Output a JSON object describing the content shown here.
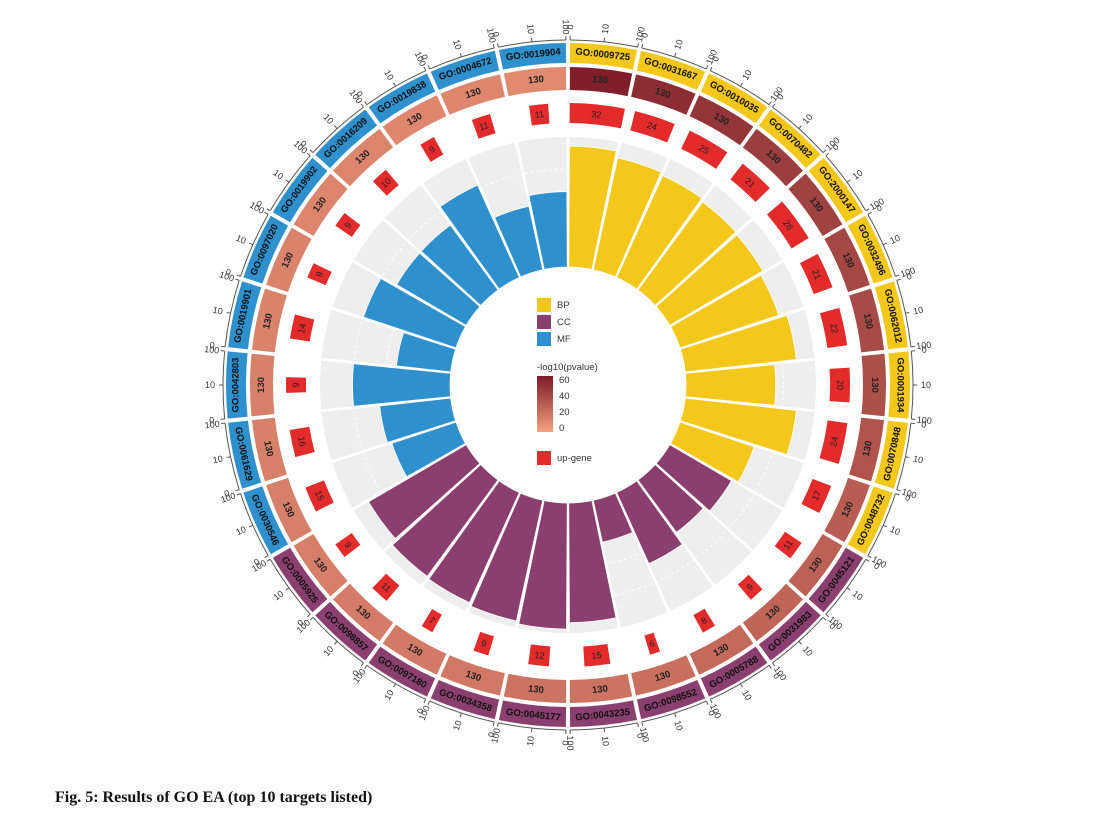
{
  "figure": {
    "caption": "Fig. 5: Results of GO EA (top 10 targets listed)"
  },
  "colors": {
    "BP": "#f4c81a",
    "CC": "#8b3f6e",
    "MF": "#2e90cc",
    "up_gene": "#e32b2b",
    "pvalue_low": "#f4a07e",
    "pvalue_high": "#7c1a28",
    "track_bg": "#eeeeee"
  },
  "chart_data": {
    "type": "circular-bar",
    "title": "",
    "legend": {
      "categories": [
        "BP",
        "CC",
        "MF"
      ],
      "gradient_title": "-log10(pvalue)",
      "gradient_ticks": [
        "60",
        "40",
        "20",
        "0"
      ],
      "gradient_range": [
        0,
        60
      ],
      "up_gene_label": "up-gene"
    },
    "outer_scale": {
      "ticks": [
        "0",
        "10",
        "100"
      ],
      "max": 100
    },
    "rich_factor_max": 1,
    "terms": [
      {
        "id": "GO:0009725",
        "category": "BP",
        "total": 130,
        "up_gene": 32,
        "neg_log10_p": 58,
        "rich_factor": 0.93
      },
      {
        "id": "GO:0031667",
        "category": "BP",
        "total": 130,
        "up_gene": 24,
        "neg_log10_p": 52,
        "rich_factor": 0.88
      },
      {
        "id": "GO:0010035",
        "category": "BP",
        "total": 130,
        "up_gene": 25,
        "neg_log10_p": 48,
        "rich_factor": 0.86
      },
      {
        "id": "GO:0070482",
        "category": "BP",
        "total": 130,
        "up_gene": 21,
        "neg_log10_p": 44,
        "rich_factor": 0.84
      },
      {
        "id": "GO:2000147",
        "category": "BP",
        "total": 130,
        "up_gene": 26,
        "neg_log10_p": 42,
        "rich_factor": 0.83
      },
      {
        "id": "GO:0032496",
        "category": "BP",
        "total": 130,
        "up_gene": 21,
        "neg_log10_p": 40,
        "rich_factor": 0.8
      },
      {
        "id": "GO:0062012",
        "category": "BP",
        "total": 130,
        "up_gene": 22,
        "neg_log10_p": 38,
        "rich_factor": 0.86
      },
      {
        "id": "GO:0001934",
        "category": "BP",
        "total": 130,
        "up_gene": 20,
        "neg_log10_p": 36,
        "rich_factor": 0.69
      },
      {
        "id": "GO:0070848",
        "category": "BP",
        "total": 130,
        "up_gene": 24,
        "neg_log10_p": 34,
        "rich_factor": 0.86
      },
      {
        "id": "GO:0048732",
        "category": "BP",
        "total": 130,
        "up_gene": 17,
        "neg_log10_p": 30,
        "rich_factor": 0.6
      },
      {
        "id": "GO:0045121",
        "category": "CC",
        "total": 130,
        "up_gene": 11,
        "neg_log10_p": 28,
        "rich_factor": 0.55
      },
      {
        "id": "GO:0031983",
        "category": "CC",
        "total": 130,
        "up_gene": 9,
        "neg_log10_p": 26,
        "rich_factor": 0.5
      },
      {
        "id": "GO:0005788",
        "category": "CC",
        "total": 130,
        "up_gene": 8,
        "neg_log10_p": 24,
        "rich_factor": 0.6
      },
      {
        "id": "GO:0098552",
        "category": "CC",
        "total": 130,
        "up_gene": 6,
        "neg_log10_p": 22,
        "rich_factor": 0.33
      },
      {
        "id": "GO:0043235",
        "category": "CC",
        "total": 130,
        "up_gene": 15,
        "neg_log10_p": 20,
        "rich_factor": 0.92
      },
      {
        "id": "GO:0045177",
        "category": "CC",
        "total": 130,
        "up_gene": 12,
        "neg_log10_p": 20,
        "rich_factor": 0.97
      },
      {
        "id": "GO:0034358",
        "category": "CC",
        "total": 130,
        "up_gene": 9,
        "neg_log10_p": 18,
        "rich_factor": 0.95
      },
      {
        "id": "GO:0097180",
        "category": "CC",
        "total": 130,
        "up_gene": 7,
        "neg_log10_p": 17,
        "rich_factor": 0.93
      },
      {
        "id": "GO:0098857",
        "category": "CC",
        "total": 130,
        "up_gene": 11,
        "neg_log10_p": 16,
        "rich_factor": 0.92
      },
      {
        "id": "GO:0005925",
        "category": "CC",
        "total": 130,
        "up_gene": 9,
        "neg_log10_p": 15,
        "rich_factor": 0.87
      },
      {
        "id": "GO:0030546",
        "category": "MF",
        "total": 130,
        "up_gene": 15,
        "neg_log10_p": 15,
        "rich_factor": 0.52
      },
      {
        "id": "GO:0061629",
        "category": "MF",
        "total": 130,
        "up_gene": 16,
        "neg_log10_p": 14,
        "rich_factor": 0.55
      },
      {
        "id": "GO:0042803",
        "category": "MF",
        "total": 130,
        "up_gene": 9,
        "neg_log10_p": 14,
        "rich_factor": 0.75
      },
      {
        "id": "GO:0019901",
        "category": "MF",
        "total": 130,
        "up_gene": 14,
        "neg_log10_p": 13,
        "rich_factor": 0.42
      },
      {
        "id": "GO:0097020",
        "category": "MF",
        "total": 130,
        "up_gene": 9,
        "neg_log10_p": 13,
        "rich_factor": 0.75
      },
      {
        "id": "GO:0019902",
        "category": "MF",
        "total": 130,
        "up_gene": 9,
        "neg_log10_p": 12,
        "rich_factor": 0.62
      },
      {
        "id": "GO:0016209",
        "category": "MF",
        "total": 130,
        "up_gene": 10,
        "neg_log10_p": 12,
        "rich_factor": 0.62
      },
      {
        "id": "GO:0019838",
        "category": "MF",
        "total": 130,
        "up_gene": 9,
        "neg_log10_p": 11,
        "rich_factor": 0.78
      },
      {
        "id": "GO:0004672",
        "category": "MF",
        "total": 130,
        "up_gene": 11,
        "neg_log10_p": 11,
        "rich_factor": 0.5
      },
      {
        "id": "GO:0019904",
        "category": "MF",
        "total": 130,
        "up_gene": 11,
        "neg_log10_p": 10,
        "rich_factor": 0.58
      }
    ]
  }
}
